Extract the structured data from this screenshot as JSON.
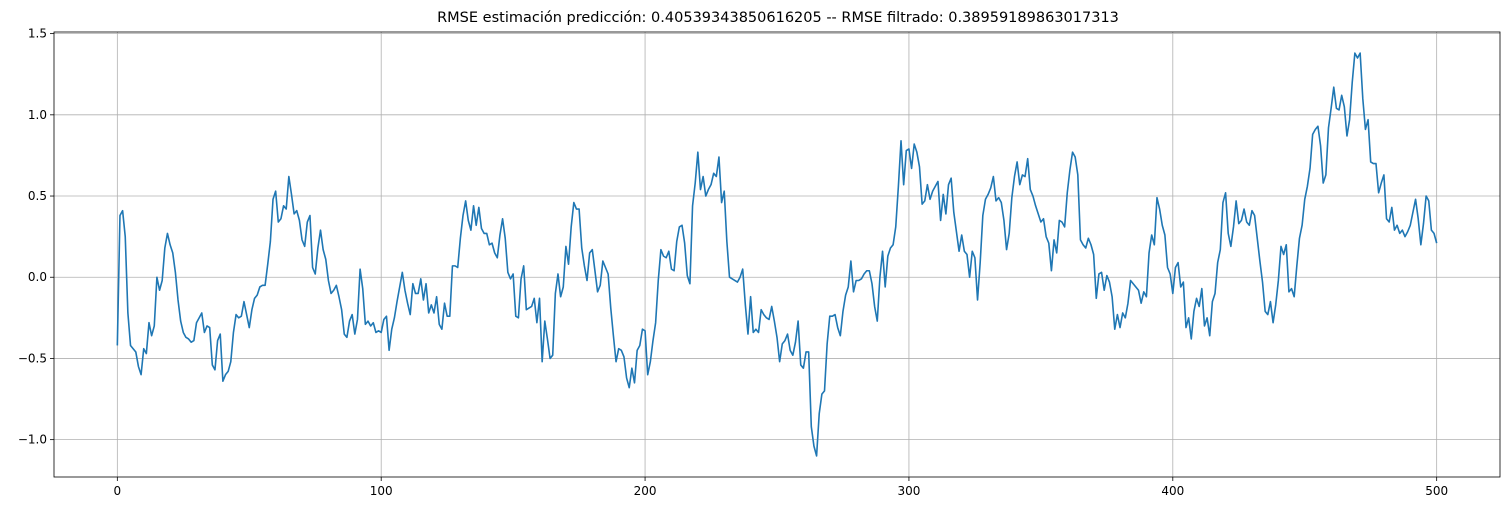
{
  "chart_data": {
    "type": "line",
    "title": "RMSE estimación predicción: 0.40539343850616205 -- RMSE filtrado: 0.38959189863017313",
    "xlabel": "",
    "ylabel": "",
    "xlim": [
      -24,
      524
    ],
    "ylim": [
      -1.23,
      1.51
    ],
    "grid": true,
    "line_color": "#1f77b4",
    "grid_color": "#b0b0b0",
    "xticks": [
      0,
      100,
      200,
      300,
      400,
      500
    ],
    "xtick_labels": [
      "0",
      "100",
      "200",
      "300",
      "400",
      "500"
    ],
    "yticks": [
      -1.0,
      -0.5,
      0.0,
      0.5,
      1.0,
      1.5
    ],
    "ytick_labels": [
      "−1.0",
      "−0.5",
      "0.0",
      "0.5",
      "1.0",
      "1.5"
    ],
    "series": [
      {
        "x_start": 0,
        "x_step": 1,
        "values": [
          -0.42,
          0.38,
          0.41,
          0.25,
          -0.22,
          -0.42,
          -0.44,
          -0.46,
          -0.55,
          -0.6,
          -0.44,
          -0.47,
          -0.28,
          -0.36,
          -0.3,
          0.0,
          -0.08,
          -0.02,
          0.18,
          0.27,
          0.2,
          0.15,
          0.03,
          -0.14,
          -0.27,
          -0.34,
          -0.37,
          -0.38,
          -0.4,
          -0.39,
          -0.28,
          -0.25,
          -0.22,
          -0.34,
          -0.3,
          -0.31,
          -0.54,
          -0.57,
          -0.39,
          -0.35,
          -0.64,
          -0.6,
          -0.58,
          -0.52,
          -0.34,
          -0.23,
          -0.25,
          -0.24,
          -0.15,
          -0.23,
          -0.31,
          -0.2,
          -0.13,
          -0.11,
          -0.06,
          -0.05,
          -0.05,
          0.08,
          0.22,
          0.48,
          0.53,
          0.34,
          0.36,
          0.44,
          0.42,
          0.62,
          0.51,
          0.39,
          0.41,
          0.35,
          0.23,
          0.19,
          0.34,
          0.38,
          0.06,
          0.02,
          0.18,
          0.29,
          0.17,
          0.11,
          -0.02,
          -0.1,
          -0.08,
          -0.05,
          -0.12,
          -0.2,
          -0.35,
          -0.37,
          -0.27,
          -0.23,
          -0.35,
          -0.26,
          0.05,
          -0.07,
          -0.29,
          -0.27,
          -0.3,
          -0.28,
          -0.34,
          -0.33,
          -0.34,
          -0.26,
          -0.24,
          -0.45,
          -0.32,
          -0.25,
          -0.15,
          -0.06,
          0.03,
          -0.08,
          -0.16,
          -0.23,
          -0.04,
          -0.1,
          -0.1,
          -0.01,
          -0.14,
          -0.04,
          -0.22,
          -0.17,
          -0.22,
          -0.12,
          -0.29,
          -0.32,
          -0.16,
          -0.24,
          -0.24,
          0.07,
          0.07,
          0.06,
          0.24,
          0.38,
          0.47,
          0.35,
          0.29,
          0.44,
          0.32,
          0.43,
          0.3,
          0.27,
          0.27,
          0.2,
          0.21,
          0.15,
          0.12,
          0.26,
          0.36,
          0.24,
          0.03,
          -0.01,
          0.02,
          -0.24,
          -0.25,
          -0.01,
          0.07,
          -0.2,
          -0.19,
          -0.18,
          -0.13,
          -0.28,
          -0.13,
          -0.52,
          -0.27,
          -0.38,
          -0.5,
          -0.48,
          -0.1,
          0.02,
          -0.12,
          -0.06,
          0.19,
          0.08,
          0.31,
          0.46,
          0.42,
          0.42,
          0.18,
          0.07,
          -0.02,
          0.15,
          0.17,
          0.04,
          -0.09,
          -0.05,
          0.1,
          0.06,
          0.02,
          -0.19,
          -0.36,
          -0.52,
          -0.44,
          -0.45,
          -0.49,
          -0.62,
          -0.68,
          -0.56,
          -0.65,
          -0.45,
          -0.42,
          -0.32,
          -0.33,
          -0.6,
          -0.52,
          -0.39,
          -0.28,
          -0.02,
          0.17,
          0.13,
          0.12,
          0.16,
          0.05,
          0.04,
          0.22,
          0.31,
          0.32,
          0.21,
          0.01,
          -0.04,
          0.44,
          0.58,
          0.77,
          0.54,
          0.62,
          0.5,
          0.54,
          0.57,
          0.64,
          0.62,
          0.74,
          0.46,
          0.53,
          0.22,
          0.0,
          -0.01,
          -0.02,
          -0.03,
          0.0,
          0.05,
          -0.17,
          -0.35,
          -0.12,
          -0.34,
          -0.32,
          -0.34,
          -0.2,
          -0.23,
          -0.25,
          -0.26,
          -0.18,
          -0.27,
          -0.37,
          -0.52,
          -0.41,
          -0.39,
          -0.35,
          -0.45,
          -0.48,
          -0.4,
          -0.27,
          -0.54,
          -0.56,
          -0.46,
          -0.46,
          -0.92,
          -1.04,
          -1.1,
          -0.84,
          -0.72,
          -0.7,
          -0.41,
          -0.24,
          -0.24,
          -0.23,
          -0.31,
          -0.36,
          -0.21,
          -0.11,
          -0.06,
          0.1,
          -0.09,
          -0.02,
          -0.02,
          -0.01,
          0.02,
          0.04,
          0.04,
          -0.04,
          -0.18,
          -0.27,
          0.0,
          0.16,
          -0.06,
          0.13,
          0.18,
          0.2,
          0.31,
          0.56,
          0.84,
          0.57,
          0.78,
          0.79,
          0.67,
          0.82,
          0.77,
          0.68,
          0.45,
          0.47,
          0.57,
          0.48,
          0.53,
          0.56,
          0.59,
          0.35,
          0.51,
          0.39,
          0.57,
          0.61,
          0.4,
          0.28,
          0.16,
          0.26,
          0.16,
          0.14,
          0.0,
          0.16,
          0.12,
          -0.14,
          0.09,
          0.38,
          0.48,
          0.51,
          0.55,
          0.62,
          0.47,
          0.49,
          0.46,
          0.35,
          0.17,
          0.27,
          0.49,
          0.62,
          0.71,
          0.57,
          0.63,
          0.62,
          0.73,
          0.54,
          0.5,
          0.44,
          0.39,
          0.34,
          0.36,
          0.25,
          0.21,
          0.04,
          0.23,
          0.15,
          0.35,
          0.34,
          0.31,
          0.52,
          0.66,
          0.77,
          0.74,
          0.63,
          0.23,
          0.2,
          0.18,
          0.24,
          0.2,
          0.14,
          -0.13,
          0.02,
          0.03,
          -0.08,
          0.01,
          -0.03,
          -0.12,
          -0.32,
          -0.23,
          -0.31,
          -0.22,
          -0.25,
          -0.16,
          -0.02,
          -0.04,
          -0.06,
          -0.08,
          -0.16,
          -0.09,
          -0.12,
          0.15,
          0.26,
          0.2,
          0.49,
          0.42,
          0.32,
          0.26,
          0.06,
          0.02,
          -0.1,
          0.06,
          0.09,
          -0.06,
          -0.03,
          -0.31,
          -0.25,
          -0.38,
          -0.21,
          -0.13,
          -0.18,
          -0.07,
          -0.3,
          -0.25,
          -0.36,
          -0.15,
          -0.1,
          0.09,
          0.17,
          0.46,
          0.52,
          0.27,
          0.19,
          0.31,
          0.47,
          0.33,
          0.35,
          0.42,
          0.34,
          0.32,
          0.41,
          0.38,
          0.24,
          0.1,
          -0.03,
          -0.21,
          -0.23,
          -0.15,
          -0.28,
          -0.17,
          -0.02,
          0.19,
          0.14,
          0.2,
          -0.09,
          -0.07,
          -0.12,
          0.07,
          0.24,
          0.32,
          0.48,
          0.56,
          0.67,
          0.88,
          0.91,
          0.93,
          0.81,
          0.58,
          0.63,
          0.92,
          1.04,
          1.17,
          1.04,
          1.03,
          1.12,
          1.05,
          0.87,
          0.97,
          1.2,
          1.38,
          1.35,
          1.38,
          1.1,
          0.91,
          0.97,
          0.71,
          0.7,
          0.7,
          0.52,
          0.58,
          0.63,
          0.36,
          0.34,
          0.43,
          0.29,
          0.32,
          0.27,
          0.29,
          0.25,
          0.28,
          0.32,
          0.4,
          0.48,
          0.36,
          0.2,
          0.33,
          0.5,
          0.47,
          0.29,
          0.27,
          0.21
        ]
      }
    ]
  }
}
